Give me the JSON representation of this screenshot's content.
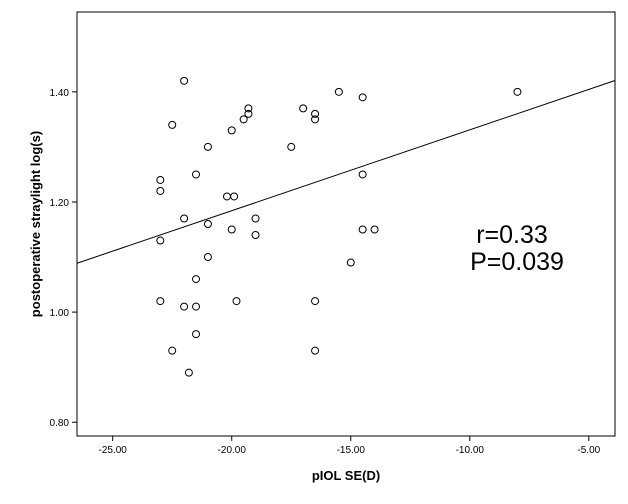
{
  "chart_data": {
    "type": "scatter",
    "title": "",
    "xlabel": "pIOL SE(D)",
    "ylabel": "postoperative straylight log(s)",
    "xlim": [
      -26.5,
      -3.9
    ],
    "ylim": [
      0.775,
      1.545
    ],
    "xticks": [
      -25,
      -20,
      -15,
      -10,
      -5
    ],
    "xtick_labels": [
      "-25.00",
      "-20.00",
      "-15.00",
      "-10.00",
      "-5.00"
    ],
    "yticks": [
      0.8,
      1.0,
      1.2,
      1.4
    ],
    "ytick_labels": [
      "0.80",
      "1.00",
      "1.20",
      "1.40"
    ],
    "grid": false,
    "legend": "none",
    "marker_color": "#000000",
    "fit_line": {
      "x": [
        -26.5,
        -3.9
      ],
      "y": [
        1.0887,
        1.4206
      ]
    },
    "annotations": [
      "r=0.33",
      "P=0.039"
    ],
    "points": [
      {
        "x": -22.0,
        "y": 1.42
      },
      {
        "x": -22.5,
        "y": 1.34
      },
      {
        "x": -23.0,
        "y": 1.24
      },
      {
        "x": -23.0,
        "y": 1.22
      },
      {
        "x": -21.0,
        "y": 1.3
      },
      {
        "x": -21.5,
        "y": 1.25
      },
      {
        "x": -22.0,
        "y": 1.17
      },
      {
        "x": -23.0,
        "y": 1.13
      },
      {
        "x": -21.0,
        "y": 1.16
      },
      {
        "x": -21.0,
        "y": 1.1
      },
      {
        "x": -21.5,
        "y": 1.06
      },
      {
        "x": -23.0,
        "y": 1.02
      },
      {
        "x": -22.0,
        "y": 1.01
      },
      {
        "x": -21.5,
        "y": 1.01
      },
      {
        "x": -21.5,
        "y": 0.96
      },
      {
        "x": -22.5,
        "y": 0.93
      },
      {
        "x": -21.8,
        "y": 0.89
      },
      {
        "x": -20.0,
        "y": 1.33
      },
      {
        "x": -19.5,
        "y": 1.35
      },
      {
        "x": -19.3,
        "y": 1.37
      },
      {
        "x": -19.3,
        "y": 1.36
      },
      {
        "x": -20.2,
        "y": 1.21
      },
      {
        "x": -19.9,
        "y": 1.21
      },
      {
        "x": -20.0,
        "y": 1.15
      },
      {
        "x": -19.0,
        "y": 1.17
      },
      {
        "x": -19.0,
        "y": 1.14
      },
      {
        "x": -19.8,
        "y": 1.02
      },
      {
        "x": -17.0,
        "y": 1.37
      },
      {
        "x": -16.5,
        "y": 1.36
      },
      {
        "x": -16.5,
        "y": 1.35
      },
      {
        "x": -17.5,
        "y": 1.3
      },
      {
        "x": -16.5,
        "y": 1.02
      },
      {
        "x": -16.5,
        "y": 0.93
      },
      {
        "x": -15.5,
        "y": 1.4
      },
      {
        "x": -14.5,
        "y": 1.39
      },
      {
        "x": -14.5,
        "y": 1.25
      },
      {
        "x": -14.5,
        "y": 1.15
      },
      {
        "x": -14.0,
        "y": 1.15
      },
      {
        "x": -15.0,
        "y": 1.09
      },
      {
        "x": -8.0,
        "y": 1.4
      }
    ]
  }
}
